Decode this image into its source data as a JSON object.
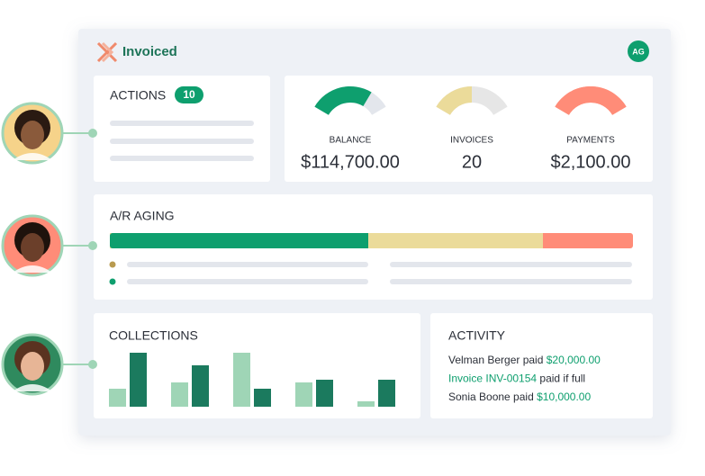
{
  "header": {
    "logo": "Invoiced",
    "avatar": "AG"
  },
  "actions": {
    "title": "ACTIONS",
    "count": 10
  },
  "metrics": [
    {
      "label": "BALANCE",
      "value": "$114,700.00"
    },
    {
      "label": "INVOICES",
      "value": "20"
    },
    {
      "label": "PAYMENTS",
      "value": "$2,100.00"
    }
  ],
  "aging": {
    "title": "A/R AGING"
  },
  "collections": {
    "title": "COLLECTIONS"
  },
  "activity": {
    "title": "ACTIVITY",
    "items": [
      [
        {
          "text": "Velman Berger paid ",
          "highlight": false
        },
        {
          "text": "$20,000.00",
          "highlight": true
        }
      ],
      [
        {
          "text": "Invoice INV-00154",
          "highlight": true
        },
        {
          "text": " paid if full",
          "highlight": false
        }
      ],
      [
        {
          "text": "Sonia Boone paid ",
          "highlight": false
        },
        {
          "text": "$10,000.00",
          "highlight": true
        }
      ]
    ]
  }
}
